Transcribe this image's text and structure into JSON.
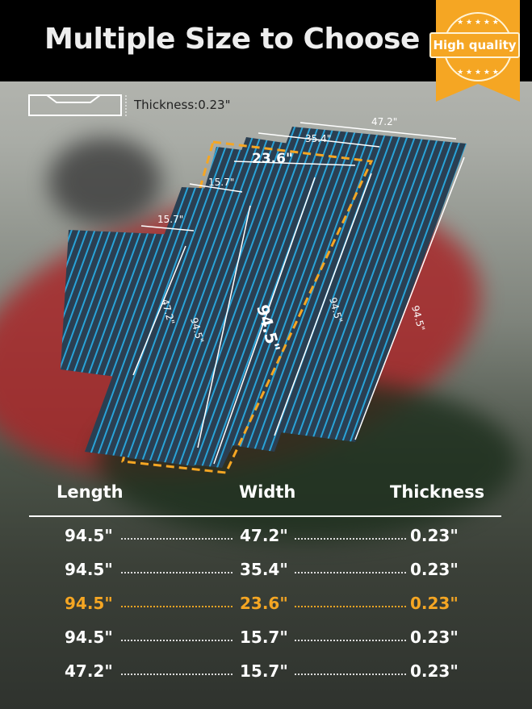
{
  "title": "Multiple Size to Choose",
  "badge": {
    "label": "High quality",
    "color": "#f5a623"
  },
  "thickness_note": "Thickness:0.23\"",
  "mat_labels": {
    "m5_width": "47.2\"",
    "m5_length": "94.5\"",
    "m4_width": "35.4\"",
    "m4_length": "94.5\"",
    "m3_width": "23.6\"",
    "m3_length": "94.5\"",
    "m2_width": "15.7\"",
    "m2_length": "94.5\"",
    "m1_width": "15.7\"",
    "m1_length": "47.2\""
  },
  "table": {
    "headers": [
      "Length",
      "Width",
      "Thickness"
    ],
    "rows": [
      {
        "length": "94.5\"",
        "width": "47.2\"",
        "thickness": "0.23\"",
        "highlight": false
      },
      {
        "length": "94.5\"",
        "width": "35.4\"",
        "thickness": "0.23\"",
        "highlight": false
      },
      {
        "length": "94.5\"",
        "width": "23.6\"",
        "thickness": "0.23\"",
        "highlight": true
      },
      {
        "length": "94.5\"",
        "width": "15.7\"",
        "thickness": "0.23\"",
        "highlight": false
      },
      {
        "length": "47.2\"",
        "width": "15.7\"",
        "thickness": "0.23\"",
        "highlight": false
      }
    ]
  },
  "colors": {
    "mat": "#2a3f52",
    "stripe": "#29a3d8",
    "highlight": "#f5a623"
  }
}
